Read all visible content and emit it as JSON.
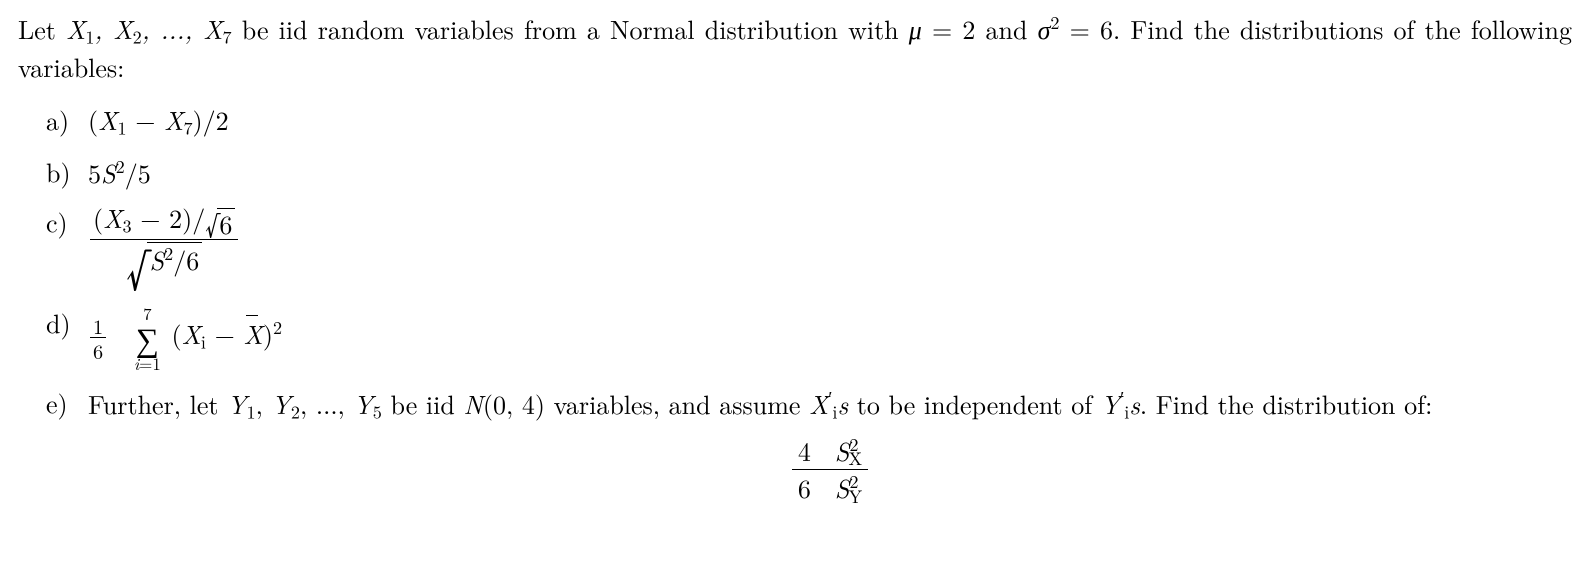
{
  "intro": {
    "pre": "Let ",
    "seq": "X₁, X₂, …, X₇",
    "mid": " be iid random variables from a Normal distribution with ",
    "mu_sym": "μ",
    "mu_eq": " = 2 and ",
    "sigma_sym": "σ",
    "sigma_sup": "2",
    "sigma_eq": " = 6.  Find the distributions of the following variables:"
  },
  "labels": {
    "a": "a)",
    "b": "b)",
    "c": "c)",
    "d": "d)",
    "e": "e)"
  },
  "parts": {
    "a": {
      "expr": "(X₁ − X₇)/2"
    },
    "b": {
      "coef": "5",
      "S": "S",
      "sup": "2",
      "div": "/5"
    },
    "c": {
      "num_l": "(",
      "num_X": "X",
      "num_sub": "3",
      "num_r": " − 2)/",
      "num_sqrt_arg": "6",
      "den_S": "S",
      "den_sup": "2",
      "den_r": "/6"
    },
    "d": {
      "frac_num": "1",
      "frac_den": "6",
      "sum_top": "7",
      "sum_bot_i": "i",
      "sum_bot_eq": "=1",
      "open": "(",
      "Xi_X": "X",
      "Xi_sub": "i",
      "minus": " − ",
      "Xbar": "X",
      "close": ")",
      "sq": "2"
    },
    "e": {
      "text1": "Further, let ",
      "seq": "Y₁, Y₂, …, Y₅",
      "text2": " be iid ",
      "N": "N",
      "Nargs": "(0, 4)",
      "text3": " variables, and assume ",
      "X": "X",
      "prime_i": "′",
      "sub_i": "i",
      "s1": "s",
      "text4": " to be independent of ",
      "Y": "Y",
      "s2": "s",
      "text5": ".  Find the distribution of:",
      "display": {
        "num_c": "4",
        "num_S": "S",
        "num_sup": "2",
        "num_sub": "X",
        "den_c": "6",
        "den_S": "S",
        "den_sup": "2",
        "den_sub": "Y"
      }
    }
  }
}
